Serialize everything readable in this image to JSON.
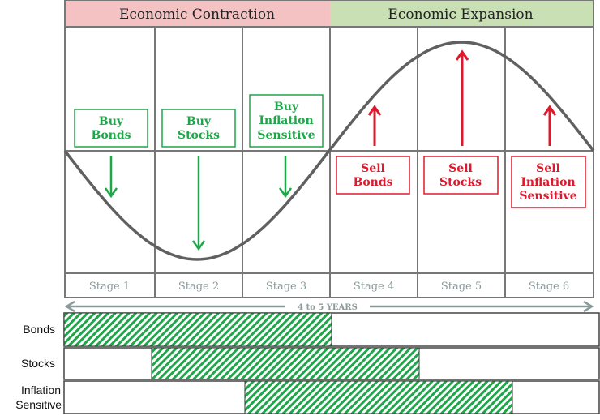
{
  "header": {
    "contraction": "Economic Contraction",
    "expansion": "Economic Expansion"
  },
  "colors": {
    "contraction_bg": "#f4c2c2",
    "expansion_bg": "#c8e0b4",
    "buy": "#1fa64a",
    "sell": "#e0182d",
    "curve": "#606060",
    "stage_text": "#8a9a9a",
    "hatch": "#1fa64a"
  },
  "buy": [
    {
      "line1": "Buy",
      "line2": "Bonds"
    },
    {
      "line1": "Buy",
      "line2": "Stocks"
    },
    {
      "line1": "Buy",
      "line2": "Inflation",
      "line3": "Sensitive"
    }
  ],
  "sell": [
    {
      "line1": "Sell",
      "line2": "Bonds"
    },
    {
      "line1": "Sell",
      "line2": "Stocks"
    },
    {
      "line1": "Sell",
      "line2": "Inflation",
      "line3": "Sensitive"
    }
  ],
  "stages": [
    "Stage 1",
    "Stage 2",
    "Stage 3",
    "Stage 4",
    "Stage 5",
    "Stage 6"
  ],
  "duration": "4 to 5 YEARS",
  "holdings": [
    {
      "label": "Bonds",
      "from_stage": 1,
      "to_stage": 3
    },
    {
      "label": "Stocks",
      "from_stage": 2,
      "to_stage": 4
    },
    {
      "label1": "Inflation",
      "label2": "Sensitive",
      "from_stage": 3,
      "to_stage": 5
    }
  ]
}
